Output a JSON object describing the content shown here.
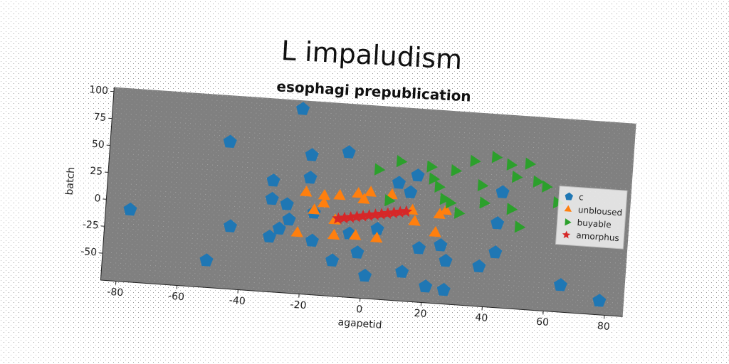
{
  "chart_data": {
    "type": "scatter",
    "title": "L impaludism",
    "subtitle": "esophagi prepublication",
    "xlabel": "agapetid",
    "ylabel": "batch",
    "xlim": [
      -85,
      86
    ],
    "ylim": [
      -75,
      104
    ],
    "xticks": [
      -80,
      -60,
      -40,
      -20,
      0,
      20,
      40,
      60,
      80
    ],
    "yticks": [
      -50,
      -25,
      0,
      25,
      50,
      75,
      100
    ],
    "legend": "center right",
    "series": [
      {
        "name": "c",
        "color": "#1f77b4",
        "marker": "pentagon",
        "x": [
          -77,
          -46,
          -23,
          -19,
          -7,
          -19,
          -31,
          -31,
          -26,
          -44,
          -25,
          -28,
          -31,
          -17,
          -51,
          -10,
          -2,
          1,
          -5,
          4,
          10,
          16,
          14,
          13,
          18,
          25,
          27,
          21,
          27,
          38,
          43,
          43,
          44,
          65,
          78,
          -17
        ],
        "y": [
          -8,
          61,
          96,
          54,
          59,
          33,
          28,
          11,
          7,
          -17,
          -7,
          -16,
          -24,
          -25,
          -50,
          -42,
          -33,
          -54,
          -16,
          -10,
          34,
          42,
          26,
          -48,
          -25,
          -21,
          -35,
          -60,
          -62,
          -38,
          -24,
          3,
          32,
          -50,
          -62,
          1
        ]
      },
      {
        "name": "unbloused",
        "color": "#ff7f0e",
        "marker": "triangle-up",
        "x": [
          -20,
          -14,
          -9,
          -3,
          1,
          -14,
          -17,
          -10,
          -22,
          -10,
          -3,
          4,
          8,
          15,
          16,
          23,
          24,
          26,
          -1
        ],
        "y": [
          19,
          17,
          18,
          21,
          23,
          10,
          3,
          -5,
          -19,
          -19,
          -18,
          -19,
          22,
          9,
          -1,
          -10,
          7,
          11,
          16
        ]
      },
      {
        "name": "buyable",
        "color": "#2ca02c",
        "marker": "triangle-right",
        "x": [
          3,
          10,
          20,
          21,
          28,
          34,
          41,
          46,
          52,
          48,
          55,
          58,
          37,
          23,
          25,
          27,
          30,
          38,
          47,
          50,
          62,
          7
        ],
        "y": [
          45,
          54,
          51,
          40,
          49,
          59,
          64,
          58,
          60,
          47,
          44,
          40,
          37,
          33,
          22,
          19,
          10,
          21,
          17,
          1,
          26,
          17
        ]
      },
      {
        "name": "amorphus",
        "color": "#d62728",
        "marker": "star",
        "x": [
          -9,
          -7,
          -5,
          -3,
          -1,
          1,
          3,
          5,
          7,
          9,
          11,
          13
        ],
        "y": [
          -3,
          -2,
          -1,
          0,
          1,
          2,
          3,
          4,
          5,
          6,
          7,
          8
        ]
      }
    ]
  }
}
